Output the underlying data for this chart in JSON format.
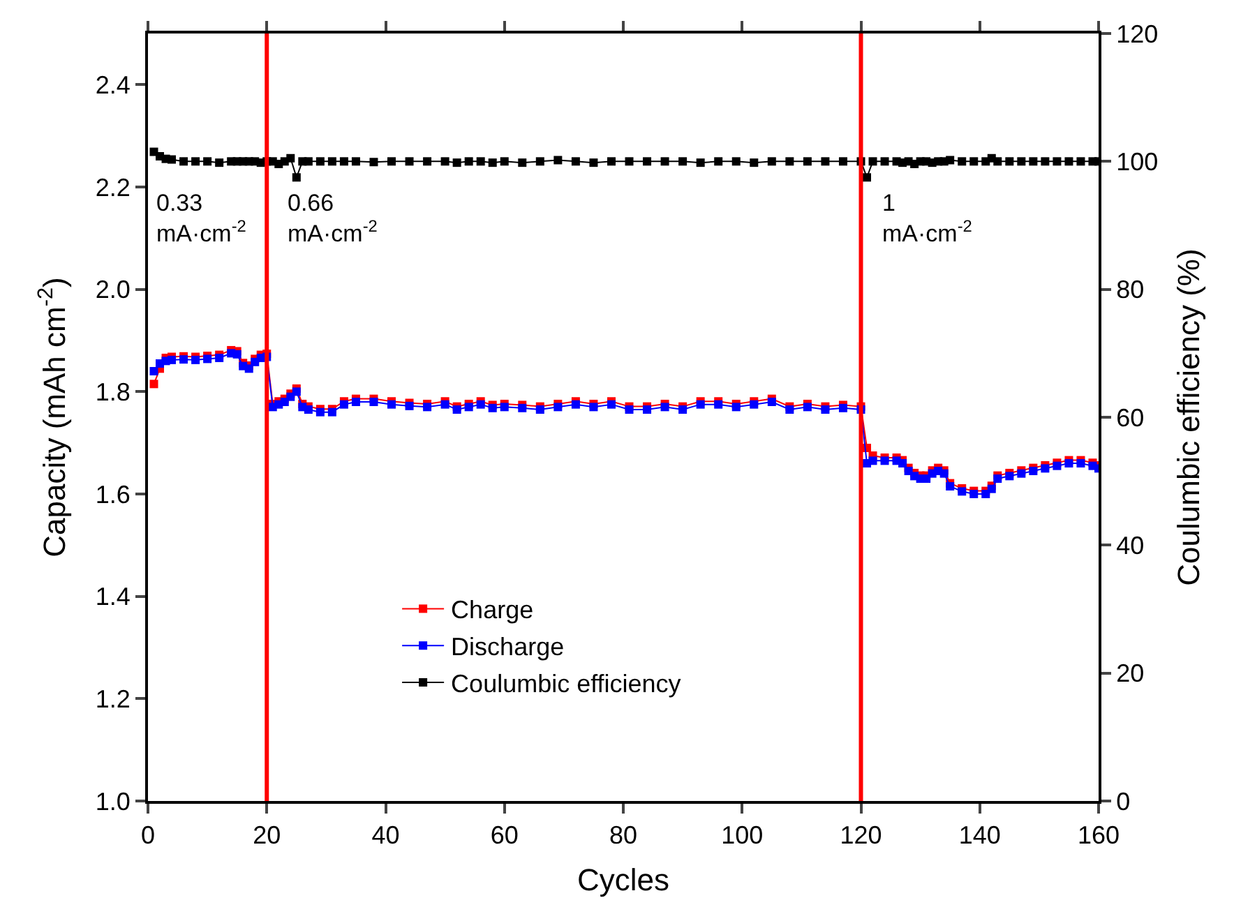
{
  "chart_data": {
    "type": "line",
    "xlabel": "Cycles",
    "ylabel": "Capacity (mAh cm$^{-2}$)",
    "y2label": "Coulumbic efficiency (%)",
    "x": [
      1,
      2,
      3,
      4,
      6,
      8,
      10,
      12,
      14,
      15,
      16,
      17,
      18,
      19,
      20,
      21,
      22,
      23,
      24,
      25,
      26,
      27,
      29,
      31,
      33,
      35,
      38,
      41,
      44,
      47,
      50,
      52,
      54,
      56,
      58,
      60,
      63,
      66,
      69,
      72,
      75,
      78,
      81,
      84,
      87,
      90,
      93,
      96,
      99,
      102,
      105,
      108,
      111,
      114,
      117,
      120,
      121,
      122,
      124,
      126,
      127,
      128,
      129,
      130,
      131,
      132,
      133,
      134,
      135,
      137,
      139,
      141,
      142,
      143,
      145,
      147,
      149,
      151,
      153,
      155,
      157,
      159,
      160
    ],
    "series": [
      {
        "name": "Charge",
        "color": "#ff0000",
        "values": [
          1.815,
          1.845,
          1.866,
          1.868,
          1.869,
          1.868,
          1.87,
          1.872,
          1.881,
          1.879,
          1.856,
          1.851,
          1.864,
          1.872,
          1.874,
          1.776,
          1.781,
          1.786,
          1.796,
          1.806,
          1.776,
          1.771,
          1.766,
          1.766,
          1.781,
          1.786,
          1.786,
          1.781,
          1.778,
          1.776,
          1.781,
          1.771,
          1.776,
          1.781,
          1.774,
          1.776,
          1.774,
          1.771,
          1.776,
          1.781,
          1.776,
          1.781,
          1.771,
          1.771,
          1.776,
          1.771,
          1.781,
          1.781,
          1.776,
          1.781,
          1.786,
          1.771,
          1.776,
          1.771,
          1.774,
          1.771,
          1.69,
          1.675,
          1.671,
          1.671,
          1.666,
          1.651,
          1.641,
          1.636,
          1.636,
          1.646,
          1.651,
          1.646,
          1.621,
          1.611,
          1.606,
          1.606,
          1.616,
          1.636,
          1.641,
          1.646,
          1.651,
          1.656,
          1.661,
          1.666,
          1.666,
          1.661,
          1.656
        ]
      },
      {
        "name": "Discharge",
        "color": "#0000ff",
        "values": [
          1.84,
          1.855,
          1.86,
          1.862,
          1.863,
          1.862,
          1.864,
          1.866,
          1.875,
          1.873,
          1.85,
          1.845,
          1.858,
          1.866,
          1.868,
          1.77,
          1.775,
          1.78,
          1.79,
          1.8,
          1.77,
          1.765,
          1.76,
          1.76,
          1.775,
          1.78,
          1.78,
          1.775,
          1.772,
          1.77,
          1.775,
          1.765,
          1.77,
          1.775,
          1.768,
          1.77,
          1.768,
          1.765,
          1.77,
          1.775,
          1.77,
          1.775,
          1.765,
          1.765,
          1.77,
          1.765,
          1.775,
          1.775,
          1.77,
          1.775,
          1.78,
          1.765,
          1.77,
          1.765,
          1.768,
          1.765,
          1.66,
          1.665,
          1.665,
          1.665,
          1.66,
          1.645,
          1.635,
          1.63,
          1.63,
          1.64,
          1.645,
          1.64,
          1.615,
          1.605,
          1.6,
          1.6,
          1.61,
          1.63,
          1.635,
          1.64,
          1.645,
          1.65,
          1.655,
          1.66,
          1.66,
          1.655,
          1.65
        ]
      },
      {
        "name": "Coulumbic efficiency",
        "color": "#000000",
        "axis": "y2",
        "values": [
          101.5,
          100.8,
          100.4,
          100.3,
          100,
          100,
          100,
          99.8,
          100,
          100,
          100,
          100,
          100,
          99.8,
          100,
          100,
          99.6,
          100,
          100.5,
          97.5,
          100,
          100,
          100,
          100,
          100,
          100,
          99.9,
          100,
          100,
          100,
          100,
          99.8,
          100,
          100,
          99.8,
          100,
          99.8,
          100,
          100.2,
          100,
          99.8,
          100,
          100,
          100,
          100,
          100,
          99.8,
          100,
          100,
          99.8,
          100,
          100,
          100,
          100,
          100,
          100,
          97.5,
          100,
          100,
          100,
          99.8,
          100,
          99.6,
          100,
          100,
          99.8,
          100,
          100,
          100.2,
          100,
          100,
          100,
          100.5,
          100,
          100,
          100,
          100,
          100,
          100,
          100,
          100,
          100,
          100
        ]
      }
    ],
    "xlim": [
      0,
      160
    ],
    "xticks": [
      0,
      20,
      40,
      60,
      80,
      100,
      120,
      140,
      160
    ],
    "ylim": [
      1.0,
      2.5
    ],
    "yticks": [
      {
        "value": 1.0,
        "label": "1.0"
      },
      1.2,
      1.4,
      1.6,
      1.8,
      {
        "value": 2.0,
        "label": "2.0"
      },
      2.2,
      2.4
    ],
    "y2lim": [
      0,
      120
    ],
    "y2ticks": [
      0,
      20,
      40,
      60,
      80,
      100,
      120
    ],
    "ref_lines": [
      {
        "axis": "x",
        "value": 20,
        "color": "#ff0000"
      },
      {
        "axis": "x",
        "value": 120,
        "color": "#ff0000"
      }
    ],
    "annotations": [
      "0.33\nmA·cm$^{-2}$",
      "0.66\nmA·cm$^{-2}$",
      "1\nmA·cm$^{-2}$"
    ],
    "marker": "square",
    "line_style": "solid",
    "legend": "bottom"
  }
}
